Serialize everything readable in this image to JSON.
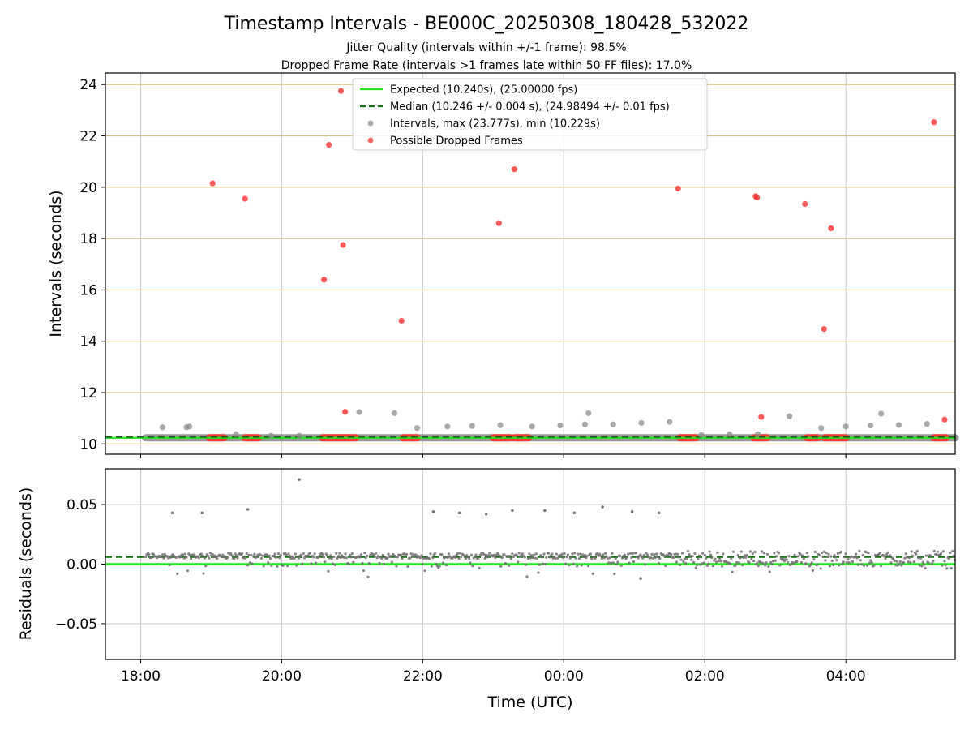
{
  "title": "Timestamp Intervals - BE000C_20250308_180428_532022",
  "subtitle_1": "Jitter Quality (intervals within +/-1 frame): 98.5%",
  "subtitle_2": "Dropped Frame Rate (intervals >1 frames late within 50 FF files): 17.0%",
  "colors": {
    "expected": "#1ee81e",
    "median": "#0a6e0a",
    "intervals": "#8c8c8c",
    "dropped": "#ff3030",
    "hgrid_top": "#d7bf7f",
    "grid": "#c8c8c8"
  },
  "chart_data": [
    {
      "type": "scatter",
      "id": "intervals",
      "ylabel": "Intervals (seconds)",
      "xlim": [
        -0.5,
        11.55
      ],
      "ylim": [
        9.6,
        24.45
      ],
      "x_ticks": [
        0,
        2,
        4,
        6,
        8,
        10
      ],
      "y_ticks": [
        10,
        12,
        14,
        16,
        18,
        20,
        22,
        24
      ],
      "y_tick_labels": [
        "10",
        "12",
        "14",
        "16",
        "18",
        "20",
        "22",
        "24"
      ],
      "grid": "on",
      "legend": {
        "placement": "upper-center",
        "entries": [
          {
            "label": "Expected (10.240s), (25.00000 fps)",
            "kind": "line",
            "color": "#1ee81e"
          },
          {
            "label": "Median (10.246 +/- 0.004 s), (24.98494 +/- 0.01 fps)",
            "kind": "dashed",
            "color": "#0a6e0a"
          },
          {
            "label": "Intervals, max (23.777s), min (10.229s)",
            "kind": "dot",
            "color": "#8c8c8c"
          },
          {
            "label": "Possible Dropped Frames",
            "kind": "dot",
            "color": "#ff3030"
          }
        ]
      },
      "expected_line": 10.24,
      "median_line": 10.246,
      "baseline_band": {
        "x_start": 0.07,
        "x_end": 11.55,
        "y": 10.24
      },
      "series": [
        {
          "name": "Intervals, max (23.777s), min (10.229s)",
          "points": [
            [
              0.31,
              10.65
            ],
            [
              0.65,
              10.65
            ],
            [
              0.69,
              10.68
            ],
            [
              1.35,
              10.38
            ],
            [
              1.85,
              10.32
            ],
            [
              2.25,
              10.32
            ],
            [
              3.1,
              11.24
            ],
            [
              3.6,
              11.2
            ],
            [
              3.92,
              10.62
            ],
            [
              4.35,
              10.68
            ],
            [
              4.7,
              10.7
            ],
            [
              5.1,
              10.73
            ],
            [
              5.55,
              10.68
            ],
            [
              5.95,
              10.72
            ],
            [
              6.3,
              10.76
            ],
            [
              6.35,
              11.2
            ],
            [
              6.7,
              10.76
            ],
            [
              7.1,
              10.82
            ],
            [
              7.5,
              10.86
            ],
            [
              7.95,
              10.35
            ],
            [
              8.35,
              10.38
            ],
            [
              8.75,
              10.38
            ],
            [
              9.2,
              11.08
            ],
            [
              9.65,
              10.62
            ],
            [
              10.0,
              10.68
            ],
            [
              10.35,
              10.72
            ],
            [
              10.5,
              11.18
            ],
            [
              10.75,
              10.74
            ],
            [
              11.15,
              10.78
            ]
          ]
        },
        {
          "name": "Possible Dropped Frames",
          "points": [
            [
              1.02,
              20.15
            ],
            [
              1.48,
              19.55
            ],
            [
              2.6,
              16.4
            ],
            [
              2.67,
              21.65
            ],
            [
              2.84,
              23.75
            ],
            [
              2.87,
              17.75
            ],
            [
              2.9,
              11.25
            ],
            [
              3.7,
              14.8
            ],
            [
              5.08,
              18.6
            ],
            [
              5.3,
              20.7
            ],
            [
              7.62,
              19.95
            ],
            [
              8.72,
              19.65
            ],
            [
              8.74,
              19.6
            ],
            [
              8.8,
              11.05
            ],
            [
              9.42,
              19.35
            ],
            [
              9.69,
              14.48
            ],
            [
              9.79,
              18.4
            ],
            [
              11.25,
              22.53
            ],
            [
              11.4,
              10.95
            ]
          ],
          "clusters": [
            [
              0.97,
              1.18
            ],
            [
              1.48,
              1.67
            ],
            [
              2.58,
              3.05
            ],
            [
              3.72,
              3.92
            ],
            [
              5.0,
              5.24
            ],
            [
              5.3,
              5.5
            ],
            [
              7.65,
              7.87
            ],
            [
              8.7,
              8.88
            ],
            [
              9.45,
              9.6
            ],
            [
              9.7,
              10.0
            ],
            [
              11.25,
              11.42
            ]
          ]
        }
      ]
    },
    {
      "type": "scatter",
      "id": "residuals",
      "xlabel": "Time (UTC)",
      "ylabel": "Residuals (seconds)",
      "xlim": [
        -0.5,
        11.55
      ],
      "ylim": [
        -0.08,
        0.08
      ],
      "x_ticks": [
        0,
        2,
        4,
        6,
        8,
        10
      ],
      "x_tick_labels": [
        "18:00",
        "20:00",
        "22:00",
        "00:00",
        "02:00",
        "04:00"
      ],
      "y_ticks": [
        -0.05,
        0.0,
        0.05
      ],
      "y_tick_labels": [
        "−0.05",
        "0.00",
        "0.05"
      ],
      "grid": "on",
      "expected_line": 0.0,
      "median_line": 0.006,
      "series": [
        {
          "name": "Residuals",
          "outliers": [
            [
              0.45,
              0.043
            ],
            [
              0.87,
              0.043
            ],
            [
              1.52,
              0.046
            ],
            [
              2.25,
              0.071
            ],
            [
              4.15,
              0.044
            ],
            [
              4.52,
              0.043
            ],
            [
              4.9,
              0.042
            ],
            [
              5.27,
              0.045
            ],
            [
              5.73,
              0.045
            ],
            [
              6.15,
              0.043
            ],
            [
              6.55,
              0.048
            ],
            [
              6.97,
              0.044
            ],
            [
              7.35,
              0.043
            ],
            [
              7.09,
              -0.012
            ]
          ],
          "bands": [
            {
              "x_start": 0.07,
              "x_end": 7.6,
              "center": 0.007,
              "spread": 0.0025,
              "drop_prob": 0.14
            },
            {
              "x_start": 7.6,
              "x_end": 11.55,
              "center": 0.006,
              "spread": 0.005,
              "drop_prob": 0.3
            }
          ]
        }
      ]
    }
  ]
}
